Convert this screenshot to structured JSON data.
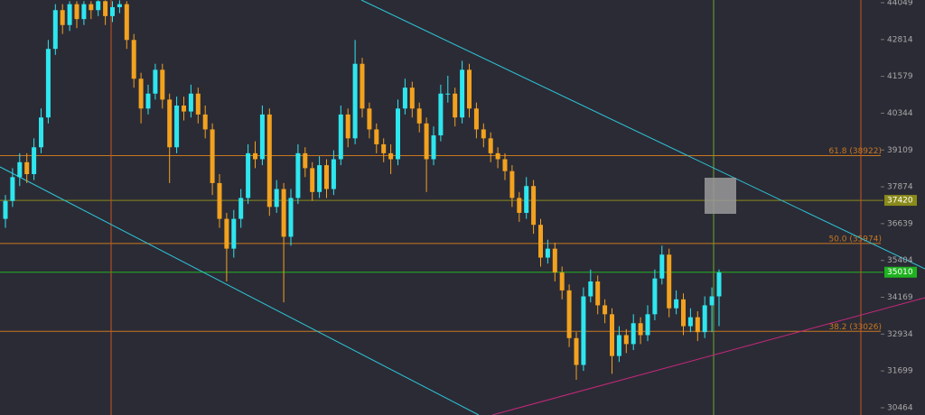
{
  "chart_data": {
    "type": "candlestick",
    "up_color": "#2ee6ee",
    "down_color": "#f2a21e",
    "ylim": [
      30221,
      44140
    ],
    "yticks": [
      44049,
      42814,
      41579,
      40344,
      39109,
      37874,
      36639,
      35404,
      34169,
      32934,
      31699,
      30464
    ],
    "fib_levels": [
      {
        "value": 38922,
        "label": "61.8 (38922)"
      },
      {
        "value": 35974,
        "label": "50.0 (35974)"
      },
      {
        "value": 33026,
        "label": "38.2 (33026)"
      }
    ],
    "fib_color": "#c8781e",
    "price_lines": [
      {
        "value": 37420,
        "color": "#8a8a1a"
      },
      {
        "value": 35010,
        "color": "#1fb31f"
      }
    ],
    "candles": [
      [
        36800,
        37600,
        36500,
        37400
      ],
      [
        37400,
        38500,
        37200,
        38200
      ],
      [
        38200,
        39000,
        37900,
        38700
      ],
      [
        38700,
        39000,
        38000,
        38300
      ],
      [
        38300,
        39500,
        38100,
        39200
      ],
      [
        39200,
        40500,
        39000,
        40200
      ],
      [
        40200,
        42800,
        40000,
        42500
      ],
      [
        42500,
        44000,
        42300,
        43800
      ],
      [
        43800,
        44000,
        43000,
        43300
      ],
      [
        43300,
        44100,
        43100,
        44000
      ],
      [
        44000,
        44100,
        43200,
        43500
      ],
      [
        43500,
        44100,
        43300,
        44000
      ],
      [
        44000,
        44100,
        43500,
        43800
      ],
      [
        43800,
        44130,
        43600,
        44100
      ],
      [
        44100,
        44130,
        43300,
        43600
      ],
      [
        43600,
        44100,
        43400,
        43900
      ],
      [
        43900,
        44130,
        43700,
        44000
      ],
      [
        44000,
        44100,
        42500,
        42800
      ],
      [
        42800,
        43000,
        41200,
        41500
      ],
      [
        41500,
        41700,
        40000,
        40500
      ],
      [
        40500,
        41300,
        40300,
        41000
      ],
      [
        41000,
        42000,
        40800,
        41800
      ],
      [
        41800,
        42000,
        40500,
        40800
      ],
      [
        40800,
        41000,
        38000,
        39200
      ],
      [
        39200,
        40900,
        39000,
        40600
      ],
      [
        40600,
        40900,
        40100,
        40400
      ],
      [
        40400,
        41300,
        40200,
        41000
      ],
      [
        41000,
        41200,
        40000,
        40300
      ],
      [
        40300,
        40600,
        39500,
        39800
      ],
      [
        39800,
        40000,
        37600,
        38000
      ],
      [
        38000,
        38300,
        36500,
        36800
      ],
      [
        36800,
        37000,
        34700,
        35800
      ],
      [
        35800,
        37100,
        35500,
        36800
      ],
      [
        36800,
        37800,
        36500,
        37500
      ],
      [
        37500,
        39300,
        37300,
        39000
      ],
      [
        39000,
        39400,
        38500,
        38800
      ],
      [
        38800,
        40600,
        38600,
        40300
      ],
      [
        40300,
        40500,
        36900,
        37200
      ],
      [
        37200,
        38100,
        37000,
        37800
      ],
      [
        37800,
        38000,
        34000,
        36200
      ],
      [
        36200,
        37800,
        35900,
        37500
      ],
      [
        37500,
        39300,
        37300,
        39000
      ],
      [
        39000,
        39200,
        38200,
        38500
      ],
      [
        38500,
        38700,
        37400,
        37700
      ],
      [
        37700,
        38900,
        37500,
        38600
      ],
      [
        38600,
        38800,
        37500,
        37800
      ],
      [
        37800,
        39100,
        37600,
        38800
      ],
      [
        38800,
        40600,
        38600,
        40300
      ],
      [
        40300,
        40500,
        39200,
        39500
      ],
      [
        39500,
        42800,
        39300,
        42000
      ],
      [
        42000,
        42200,
        40200,
        40500
      ],
      [
        40500,
        40700,
        39500,
        39800
      ],
      [
        39800,
        40000,
        39000,
        39300
      ],
      [
        39300,
        39500,
        38700,
        39000
      ],
      [
        39000,
        39300,
        38300,
        38800
      ],
      [
        38800,
        40800,
        38600,
        40500
      ],
      [
        40500,
        41500,
        40300,
        41200
      ],
      [
        41200,
        41400,
        40200,
        40500
      ],
      [
        40500,
        40700,
        39700,
        40000
      ],
      [
        40000,
        40200,
        37700,
        38800
      ],
      [
        38800,
        39900,
        38600,
        39600
      ],
      [
        39600,
        41300,
        39400,
        41000
      ],
      [
        41000,
        41600,
        40700,
        41000
      ],
      [
        41000,
        41200,
        39900,
        40200
      ],
      [
        40200,
        42100,
        40000,
        41800
      ],
      [
        41800,
        42000,
        40200,
        40500
      ],
      [
        40500,
        40700,
        39500,
        39800
      ],
      [
        39800,
        40000,
        39200,
        39500
      ],
      [
        39500,
        39700,
        38700,
        39000
      ],
      [
        39000,
        39200,
        38500,
        38800
      ],
      [
        38800,
        39000,
        38100,
        38400
      ],
      [
        38400,
        38600,
        37200,
        37500
      ],
      [
        37500,
        37700,
        36700,
        37000
      ],
      [
        37000,
        38200,
        36800,
        37900
      ],
      [
        37900,
        38100,
        36300,
        36600
      ],
      [
        36600,
        36800,
        35200,
        35500
      ],
      [
        35500,
        36100,
        35300,
        35800
      ],
      [
        35800,
        36000,
        34700,
        35000
      ],
      [
        35000,
        35200,
        34100,
        34400
      ],
      [
        34400,
        34600,
        32500,
        32800
      ],
      [
        32800,
        33000,
        31400,
        31900
      ],
      [
        31900,
        34500,
        31700,
        34200
      ],
      [
        34200,
        35100,
        34000,
        34700
      ],
      [
        34700,
        34900,
        33600,
        33900
      ],
      [
        33900,
        34100,
        33300,
        33600
      ],
      [
        33600,
        33800,
        31600,
        32200
      ],
      [
        32200,
        33200,
        32000,
        32900
      ],
      [
        32900,
        33100,
        32300,
        32600
      ],
      [
        32600,
        33600,
        32400,
        33300
      ],
      [
        33300,
        33500,
        32600,
        32900
      ],
      [
        32900,
        33900,
        32700,
        33600
      ],
      [
        33600,
        35100,
        33400,
        34800
      ],
      [
        34800,
        35900,
        34600,
        35600
      ],
      [
        35600,
        35800,
        33500,
        33800
      ],
      [
        33800,
        34400,
        33600,
        34100
      ],
      [
        34100,
        34300,
        32900,
        33200
      ],
      [
        33200,
        33800,
        33000,
        33500
      ],
      [
        33500,
        33700,
        32700,
        33000
      ],
      [
        33000,
        34200,
        32800,
        33900
      ],
      [
        33900,
        34500,
        33000,
        34200
      ],
      [
        34200,
        35100,
        33200,
        35000
      ]
    ]
  }
}
